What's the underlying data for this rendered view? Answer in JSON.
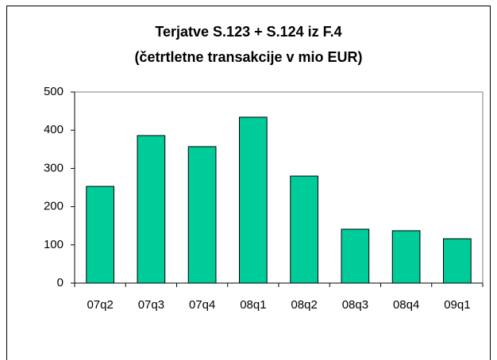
{
  "chart_data": {
    "type": "bar",
    "title": "Terjatve S.123 + S.124 iz F.4",
    "subtitle": "(četrtletne transakcije v mio EUR)",
    "categories": [
      "07q2",
      "07q3",
      "07q4",
      "08q1",
      "08q2",
      "08q3",
      "08q4",
      "09q1"
    ],
    "values": [
      253,
      386,
      357,
      434,
      280,
      141,
      137,
      116
    ],
    "color": "#00cc99",
    "ylim": [
      0,
      500
    ],
    "yticks": [
      0,
      100,
      200,
      300,
      400,
      500
    ],
    "grid": false
  }
}
